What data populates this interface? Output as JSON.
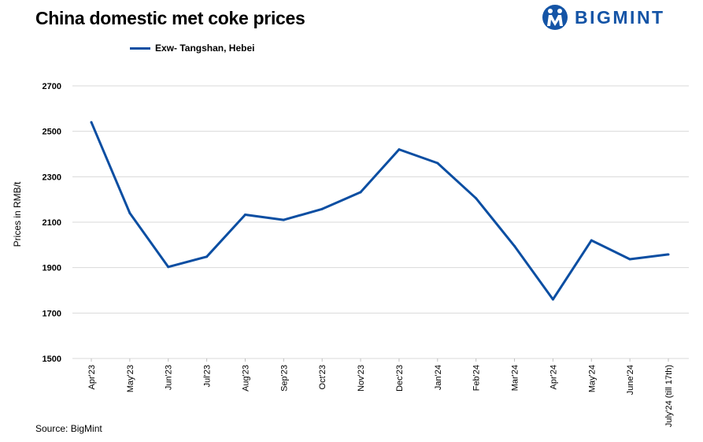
{
  "header": {
    "title": "China domestic met coke prices",
    "logo_text": "BIGMINT"
  },
  "footer": {
    "source": "Source: BigMint"
  },
  "colors": {
    "series_line": "#0b4ea2",
    "logo": "#1454a6",
    "grid": "#d9d9d9"
  },
  "chart_data": {
    "type": "line",
    "title": "China domestic met coke prices",
    "ylabel": "Prices in RMB/t",
    "xlabel": "",
    "ylim": [
      1500,
      2700
    ],
    "yticks": [
      1500,
      1700,
      1900,
      2100,
      2300,
      2500,
      2700
    ],
    "grid": true,
    "legend_position": "top-left",
    "categories": [
      "Apr'23",
      "May'23",
      "Jun'23",
      "Jul'23",
      "Aug'23",
      "Sep'23",
      "Oct'23",
      "Nov'23",
      "Dec'23",
      "Jan'24",
      "Feb'24",
      "Mar'24",
      "Apr'24",
      "May'24",
      "June'24",
      "July'24 (till 17th)"
    ],
    "series": [
      {
        "name": "Exw- Tangshan, Hebei",
        "values": [
          2540,
          2140,
          1903,
          1948,
          2133,
          2110,
          2158,
          2232,
          2420,
          2360,
          2205,
          1995,
          1760,
          2020,
          1937,
          1958
        ]
      }
    ]
  }
}
